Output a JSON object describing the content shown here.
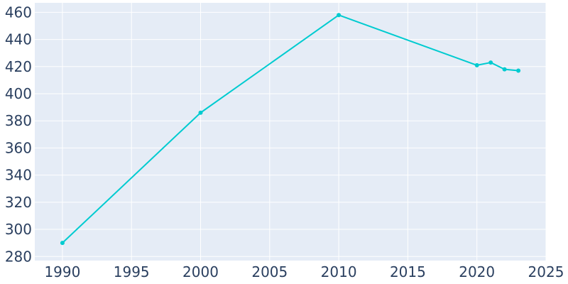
{
  "chart_data": {
    "type": "line",
    "title": "",
    "xlabel": "",
    "ylabel": "",
    "x": [
      1990,
      2000,
      2010,
      2020,
      2021,
      2022,
      2023
    ],
    "series": [
      {
        "values": [
          290,
          386,
          458,
          421,
          423,
          418,
          417
        ]
      }
    ],
    "xlim": [
      1988,
      2025
    ],
    "ylim": [
      277,
      467
    ],
    "x_ticks": [
      1990,
      1995,
      2000,
      2005,
      2010,
      2015,
      2020,
      2025
    ],
    "y_ticks": [
      280,
      300,
      320,
      340,
      360,
      380,
      400,
      420,
      440,
      460
    ],
    "grid": true,
    "legend": "none",
    "colors": {
      "line": "#00cbd0",
      "plot_background": "#e5ecf6",
      "grid": "#ffffff",
      "tick_text": "#2a3f5f"
    }
  }
}
